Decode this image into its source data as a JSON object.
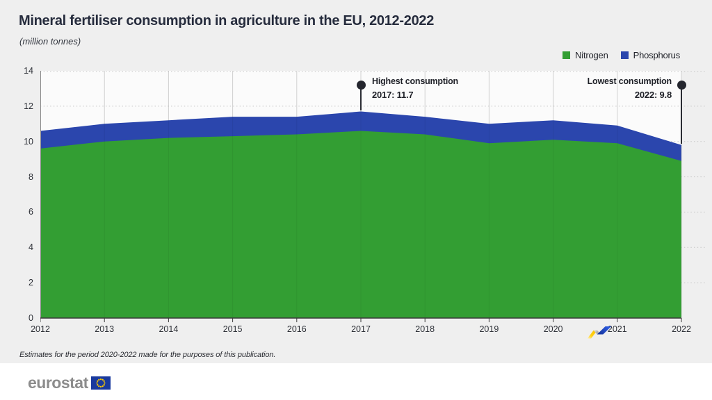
{
  "header": {
    "title": "Mineral fertiliser consumption in agriculture in the EU, 2012-2022",
    "subtitle": "(million tonnes)"
  },
  "chart_data": {
    "type": "area",
    "stacked": true,
    "title": "Mineral fertiliser consumption in agriculture in the EU, 2012-2022",
    "unit": "(million tonnes)",
    "x": [
      2012,
      2013,
      2014,
      2015,
      2016,
      2017,
      2018,
      2019,
      2020,
      2021,
      2022
    ],
    "series": [
      {
        "name": "Nitrogen",
        "color": "#339E33",
        "values": [
          9.6,
          10.0,
          10.2,
          10.3,
          10.4,
          10.6,
          10.4,
          9.9,
          10.1,
          9.9,
          8.9
        ]
      },
      {
        "name": "Phosphorus",
        "color": "#2B46AD",
        "values": [
          1.0,
          1.0,
          1.0,
          1.1,
          1.0,
          1.1,
          1.0,
          1.1,
          1.1,
          1.0,
          0.9
        ]
      }
    ],
    "totals": [
      10.6,
      11.0,
      11.2,
      11.4,
      11.4,
      11.7,
      11.4,
      11.0,
      11.2,
      10.9,
      9.8
    ],
    "ylim": [
      0,
      14
    ],
    "ytick_step": 2,
    "grid": {
      "horizontal": "dotted",
      "vertical": "solid"
    },
    "legend_position": "top-right",
    "annotations": [
      {
        "id": "highest",
        "label": "Highest consumption",
        "value_label": "2017: 11.7",
        "year": 2017,
        "value": 11.7,
        "text_side": "right"
      },
      {
        "id": "lowest",
        "label": "Lowest consumption",
        "value_label": "2022: 9.8",
        "year": 2022,
        "value": 9.8,
        "text_side": "left"
      }
    ]
  },
  "footer": {
    "note": "Estimates for the period 2020-2022 made for the purposes of this publication.",
    "logo_text": "eurostat"
  },
  "colors": {
    "background": "#EFEFEF",
    "plot_background": "#FBFBFB",
    "nitrogen": "#339E33",
    "phosphorus": "#2B46AD",
    "annotation": "#24262E",
    "axis_text": "#2E3138",
    "eurostat_gray": "#8C8C8C",
    "eu_flag_blue": "#1A3A9E",
    "eu_star_yellow": "#FFCC00",
    "ribbon_yellow": "#FDC500",
    "ribbon_silver": "#ABABB0",
    "ribbon_blue": "#1F4BC8"
  }
}
